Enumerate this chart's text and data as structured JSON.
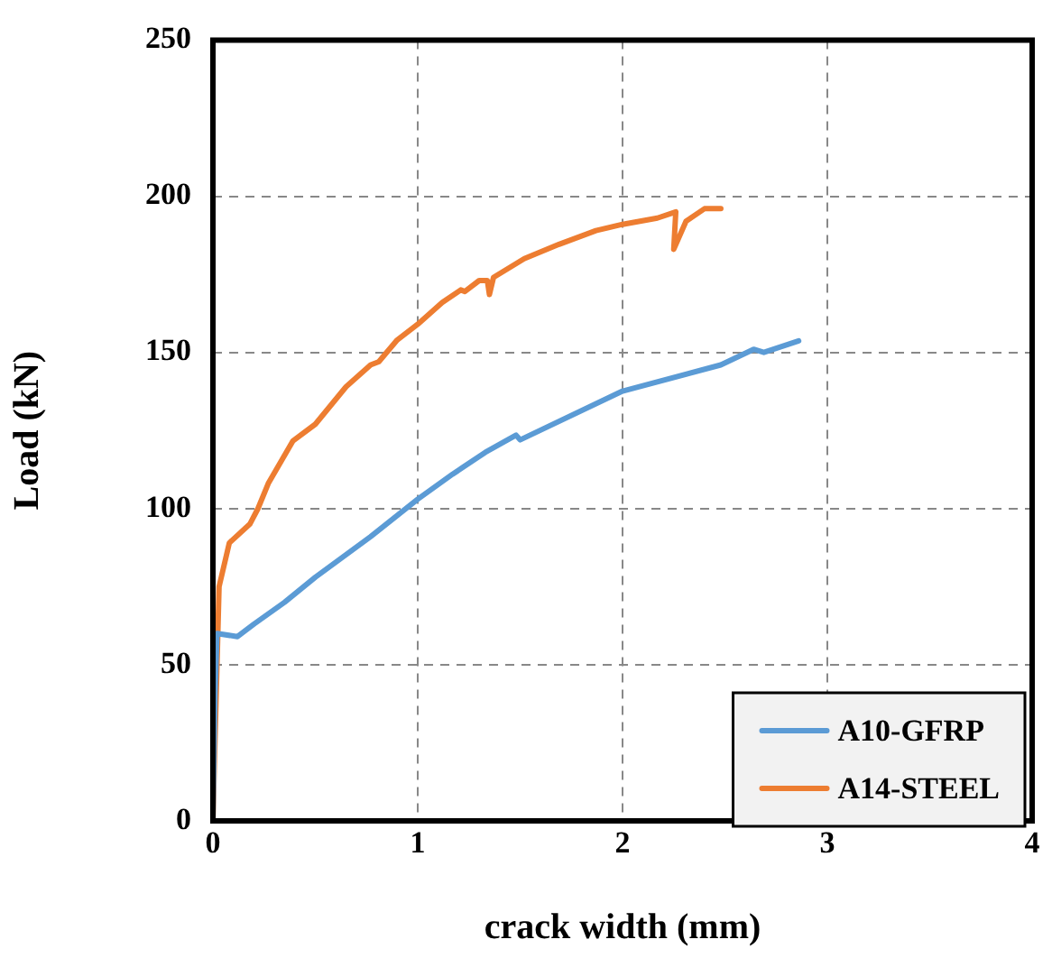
{
  "chart_data": {
    "type": "line",
    "xlabel": "crack width (mm)",
    "ylabel": "Load (kN)",
    "xlim": [
      0,
      4
    ],
    "xticks": [
      0,
      1,
      2,
      3,
      4
    ],
    "ylim": [
      0,
      250
    ],
    "yticks": [
      0,
      50,
      100,
      150,
      200,
      250
    ],
    "grid": true,
    "legend": "bottom right",
    "marker": "none",
    "line_style": "solid",
    "series": [
      {
        "name": "A10-GFRP",
        "color": "#5b9bd5",
        "x": [
          0,
          0.01,
          0.02,
          0.12,
          0.2,
          0.35,
          0.5,
          0.77,
          1.0,
          1.17,
          1.33,
          1.48,
          1.5,
          2.0,
          2.48,
          2.64,
          2.69,
          2.86
        ],
        "values": [
          0,
          40,
          60,
          59,
          63,
          70,
          78,
          91,
          103,
          111,
          118,
          123.5,
          122,
          137.6,
          146,
          151,
          150,
          153.7
        ]
      },
      {
        "name": "A14-STEEL",
        "color": "#ed7d31",
        "x": [
          0,
          0.02,
          0.03,
          0.08,
          0.18,
          0.22,
          0.27,
          0.39,
          0.5,
          0.65,
          0.77,
          0.81,
          0.9,
          1.0,
          1.12,
          1.21,
          1.23,
          1.3,
          1.34,
          1.35,
          1.37,
          1.52,
          1.69,
          1.87,
          2.0,
          2.17,
          2.26,
          2.25,
          2.31,
          2.4,
          2.48
        ],
        "values": [
          0,
          50,
          75,
          89,
          95,
          100,
          108,
          121.6,
          127,
          139,
          146,
          147,
          154,
          159,
          166,
          170,
          169.5,
          173,
          173,
          168.5,
          174,
          180,
          184.6,
          189,
          191,
          193,
          195,
          183,
          192,
          196,
          196
        ]
      }
    ]
  }
}
